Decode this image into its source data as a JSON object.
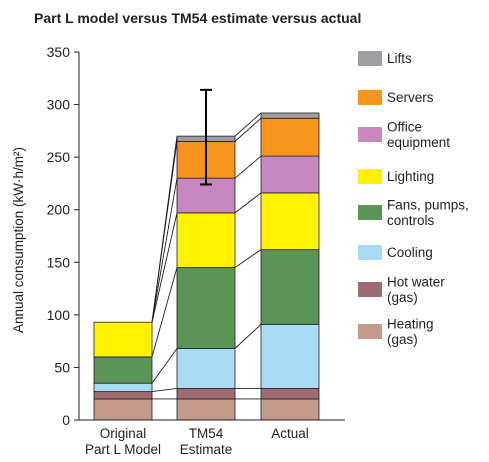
{
  "chart_data": {
    "type": "bar",
    "stacked": true,
    "title": "Part L model versus TM54 estimate versus actual",
    "ylabel": "Annual consumption (kW·h/m²)",
    "ylim": [
      0,
      350
    ],
    "yticks": [
      0,
      50,
      100,
      150,
      200,
      250,
      300,
      350
    ],
    "grid": false,
    "legend_position": "right",
    "categories": [
      [
        "Original",
        "Part L Model"
      ],
      [
        "TM54",
        "Estimate"
      ],
      [
        "Actual"
      ]
    ],
    "series": [
      {
        "name": [
          "Heating",
          "(gas)"
        ],
        "color": "#c49a8a",
        "values": [
          20,
          20,
          20
        ]
      },
      {
        "name": [
          "Hot water",
          "(gas)"
        ],
        "color": "#9e6b73",
        "values": [
          7,
          10,
          10
        ]
      },
      {
        "name": [
          "Cooling"
        ],
        "color": "#a8dcf5",
        "values": [
          8,
          38,
          61
        ]
      },
      {
        "name": [
          "Fans, pumps,",
          "controls"
        ],
        "color": "#5a9456",
        "values": [
          25,
          77,
          71
        ]
      },
      {
        "name": [
          "Lighting"
        ],
        "color": "#fff200",
        "values": [
          33,
          52,
          54
        ]
      },
      {
        "name": [
          "Office",
          "equipment"
        ],
        "color": "#c688bf",
        "values": [
          0,
          33,
          35
        ]
      },
      {
        "name": [
          "Servers"
        ],
        "color": "#f7941d",
        "values": [
          0,
          35,
          36
        ]
      },
      {
        "name": [
          "Lifts"
        ],
        "color": "#9d9fa2",
        "values": [
          0,
          5,
          5
        ]
      }
    ],
    "error_bar": {
      "category_index": 1,
      "low": 224,
      "high": 314
    }
  }
}
